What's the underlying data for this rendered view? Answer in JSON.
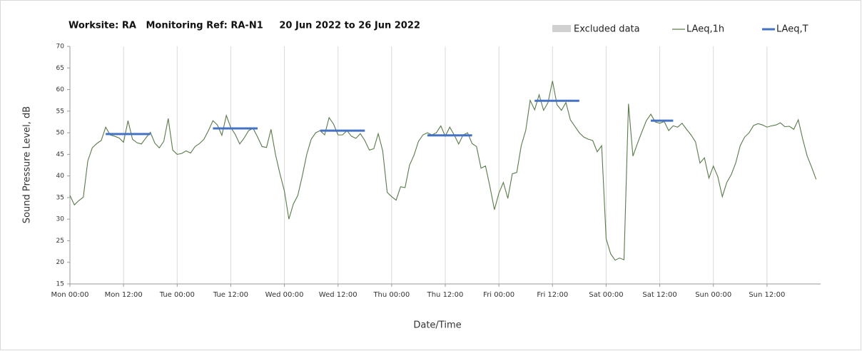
{
  "chart_data": {
    "type": "line",
    "title": "Worksite: RA   Monitoring Ref: RA-N1     20 Jun 2022 to 26 Jun 2022",
    "x_label": "Date/Time",
    "y_label": "Sound Pressure Level, dB",
    "excluded": {
      "name": "Excluded data",
      "color": "#d0d0d0"
    },
    "x": [
      0,
      1,
      2,
      3,
      4,
      5,
      6,
      7,
      8,
      9,
      10,
      11,
      12,
      13,
      14,
      15,
      16,
      17,
      18,
      19,
      20,
      21,
      22,
      23,
      24,
      25,
      26,
      27,
      28,
      29,
      30,
      31,
      32,
      33,
      34,
      35,
      36,
      37,
      38,
      39,
      40,
      41,
      42,
      43,
      44,
      45,
      46,
      47,
      48,
      49,
      50,
      51,
      52,
      53,
      54,
      55,
      56,
      57,
      58,
      59,
      60,
      61,
      62,
      63,
      64,
      65,
      66,
      67,
      68,
      69,
      70,
      71,
      72,
      73,
      74,
      75,
      76,
      77,
      78,
      79,
      80,
      81,
      82,
      83,
      84,
      85,
      86,
      87,
      88,
      89,
      90,
      91,
      92,
      93,
      94,
      95,
      96,
      97,
      98,
      99,
      100,
      101,
      102,
      103,
      104,
      105,
      106,
      107,
      108,
      109,
      110,
      111,
      112,
      113,
      114,
      115,
      116,
      117,
      118,
      119,
      120,
      121,
      122,
      123,
      124,
      125,
      126,
      127,
      128,
      129,
      130,
      131,
      132,
      133,
      134,
      135,
      136,
      137,
      138,
      139,
      140,
      141,
      142,
      143,
      144,
      145,
      146,
      147,
      148,
      149,
      150,
      151,
      152,
      153,
      154,
      155,
      156,
      157,
      158,
      159,
      160,
      161,
      162,
      163,
      164,
      165,
      166,
      167
    ],
    "series": [
      {
        "name": "LAeq,1h",
        "color": "#5a7a4a",
        "values": [
          35.5,
          33.3,
          34.3,
          35.1,
          43.5,
          46.5,
          47.5,
          48.2,
          51.3,
          49.5,
          49.2,
          48.8,
          47.8,
          52.8,
          48.5,
          47.7,
          47.4,
          48.8,
          50.1,
          47.6,
          46.5,
          48,
          53.3,
          46,
          45,
          45.2,
          45.8,
          45.3,
          46.8,
          47.5,
          48.5,
          50.5,
          52.8,
          51.8,
          49.4,
          54,
          51.2,
          49.6,
          47.4,
          48.8,
          50.5,
          51,
          49,
          46.8,
          46.6,
          50.8,
          45,
          40.5,
          36.5,
          30,
          33.5,
          35.5,
          40,
          45,
          48.5,
          50,
          50.5,
          49.5,
          53.5,
          52,
          49.5,
          49.5,
          50.5,
          49.2,
          48.7,
          49.8,
          48.2,
          46,
          46.3,
          49.8,
          45.8,
          36.2,
          35.2,
          34.4,
          37.5,
          37.3,
          42.5,
          44.8,
          48,
          49.5,
          50,
          49.5,
          50,
          51.6,
          49.2,
          51.3,
          49.5,
          47.4,
          49.5,
          50,
          47.5,
          46.8,
          41.8,
          42.3,
          37.5,
          32.2,
          36,
          38.5,
          34.8,
          40.5,
          40.8,
          47,
          50.5,
          57.5,
          55.3,
          58.8,
          55.2,
          57,
          62,
          56.5,
          55.2,
          57,
          53,
          51.5,
          50,
          49,
          48.5,
          48.2,
          45.6,
          47,
          25.5,
          22,
          20.5,
          21,
          20.6,
          56.7,
          44.6,
          47.5,
          50.2,
          52.8,
          54.3,
          52.5,
          52.2,
          52.6,
          50.5,
          51.6,
          51.3,
          52.2,
          50.8,
          49.5,
          47.9,
          43,
          44.2,
          39.5,
          42.3,
          39.8,
          35.2,
          38.5,
          40.3,
          43,
          47,
          49,
          50,
          51.7,
          52.1,
          51.8,
          51.3,
          51.6,
          51.8,
          52.3,
          51.4,
          51.5,
          50.8,
          53,
          48.5,
          44.6,
          42,
          39.2
        ]
      }
    ],
    "period": {
      "name": "LAeq,T",
      "color": "#4472c4",
      "segments": [
        {
          "x": [
            8,
            18
          ],
          "value": 49.7
        },
        {
          "x": [
            32,
            42
          ],
          "value": 51
        },
        {
          "x": [
            56,
            66
          ],
          "value": 50.5
        },
        {
          "x": [
            80,
            90
          ],
          "value": 49.4
        },
        {
          "x": [
            104,
            114
          ],
          "value": 57.4
        },
        {
          "x": [
            130,
            135
          ],
          "value": 52.8
        }
      ]
    },
    "xlim": [
      0,
      168
    ],
    "xticks": [
      {
        "value": 0,
        "label": "Mon 00:00"
      },
      {
        "value": 12,
        "label": "Mon 12:00"
      },
      {
        "value": 24,
        "label": "Tue 00:00"
      },
      {
        "value": 36,
        "label": "Tue 12:00"
      },
      {
        "value": 48,
        "label": "Wed 00:00"
      },
      {
        "value": 60,
        "label": "Wed 12:00"
      },
      {
        "value": 72,
        "label": "Thu 00:00"
      },
      {
        "value": 84,
        "label": "Thu 12:00"
      },
      {
        "value": 96,
        "label": "Fri 00:00"
      },
      {
        "value": 108,
        "label": "Fri 12:00"
      },
      {
        "value": 120,
        "label": "Sat 00:00"
      },
      {
        "value": 132,
        "label": "Sat 12:00"
      },
      {
        "value": 144,
        "label": "Sun 00:00"
      },
      {
        "value": 156,
        "label": "Sun 12:00"
      }
    ],
    "ylim": [
      15,
      70
    ],
    "yticks": [
      15,
      20,
      25,
      30,
      35,
      40,
      45,
      50,
      55,
      60,
      65,
      70
    ],
    "grid": "x"
  }
}
